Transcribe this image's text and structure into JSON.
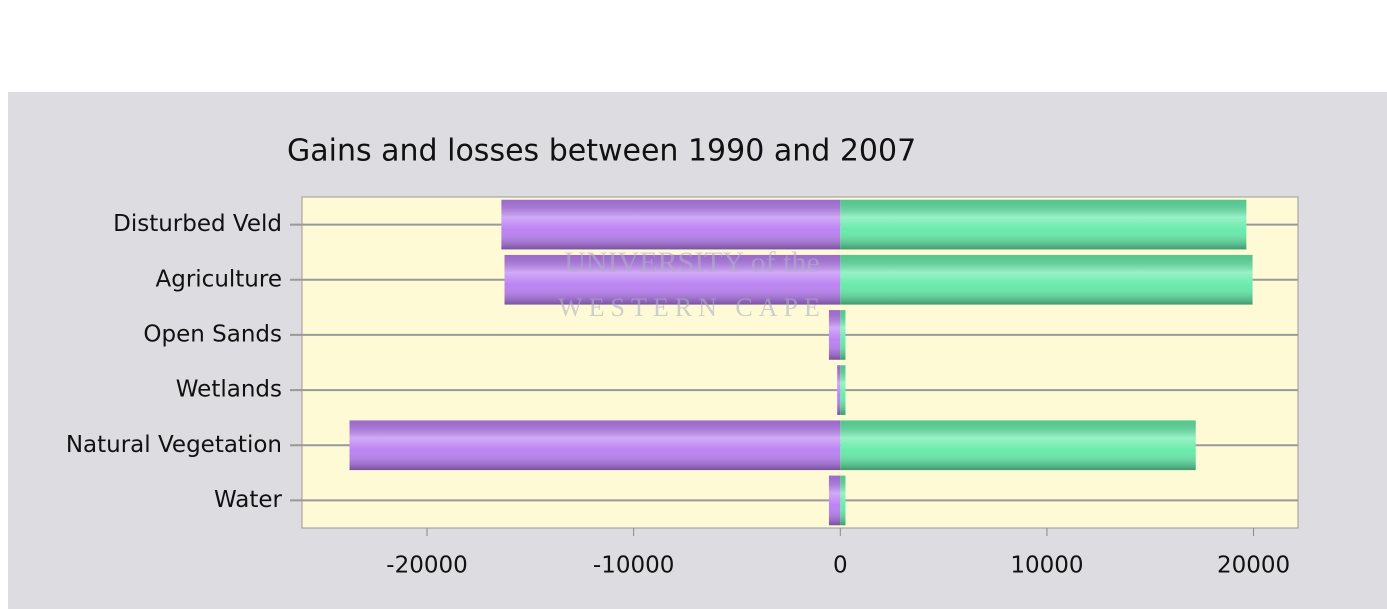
{
  "chart_data": {
    "type": "diverging-bar",
    "title": "Gains and losses between 1990 and 2007",
    "categories": [
      "Disturbed Veld",
      "Agriculture",
      "Open Sands",
      "Wetlands",
      "Natural Vegetation",
      "Water"
    ],
    "series": [
      {
        "color": "#b87df2",
        "values": [
          -16400,
          -16250,
          -550,
          -150,
          -23750,
          -550
        ]
      },
      {
        "color": "#62eaa8",
        "values": [
          19650,
          19950,
          250,
          250,
          17200,
          250
        ]
      }
    ],
    "xlim": [
      -26050,
      22150
    ],
    "xticks": [
      -20000,
      -10000,
      0,
      10000,
      20000
    ],
    "grid": true
  },
  "watermark": [
    "UNIVERSITY of the",
    "WESTERN CAPE"
  ]
}
